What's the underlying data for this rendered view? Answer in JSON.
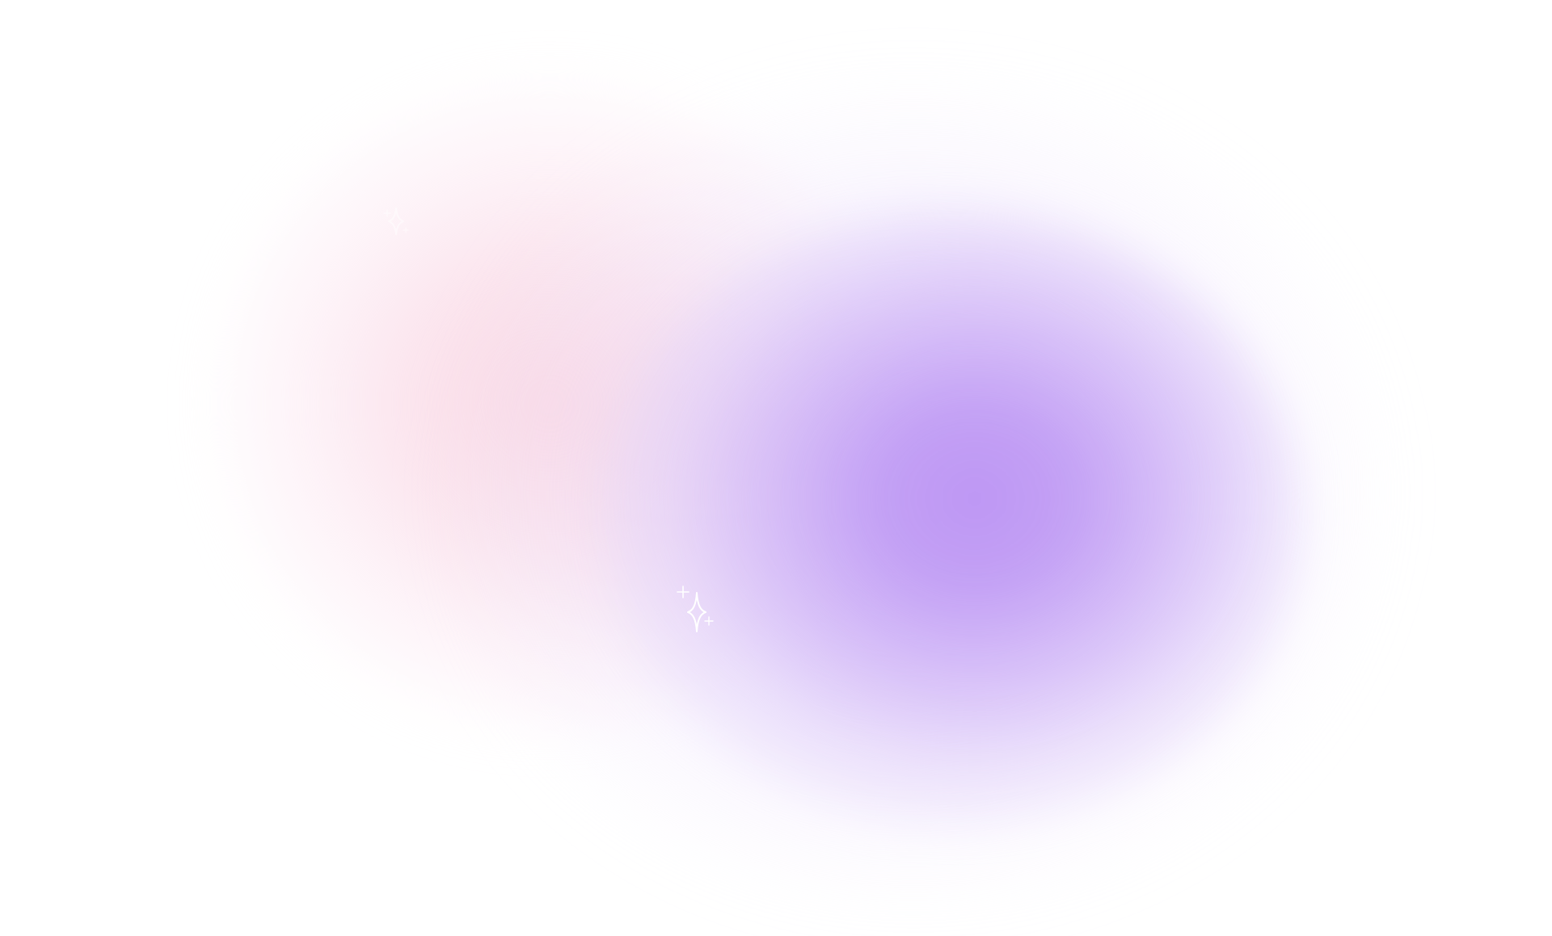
{
  "background": {
    "base_color": "#ffffff",
    "glow_colors": {
      "pink": "#f9d6e2",
      "purple": "#bd96f4"
    }
  },
  "decorations": {
    "sparkle_color": "#ffffff",
    "sparkles": [
      {
        "name": "sparkle-large-icon"
      },
      {
        "name": "sparkle-small-icon"
      }
    ]
  }
}
